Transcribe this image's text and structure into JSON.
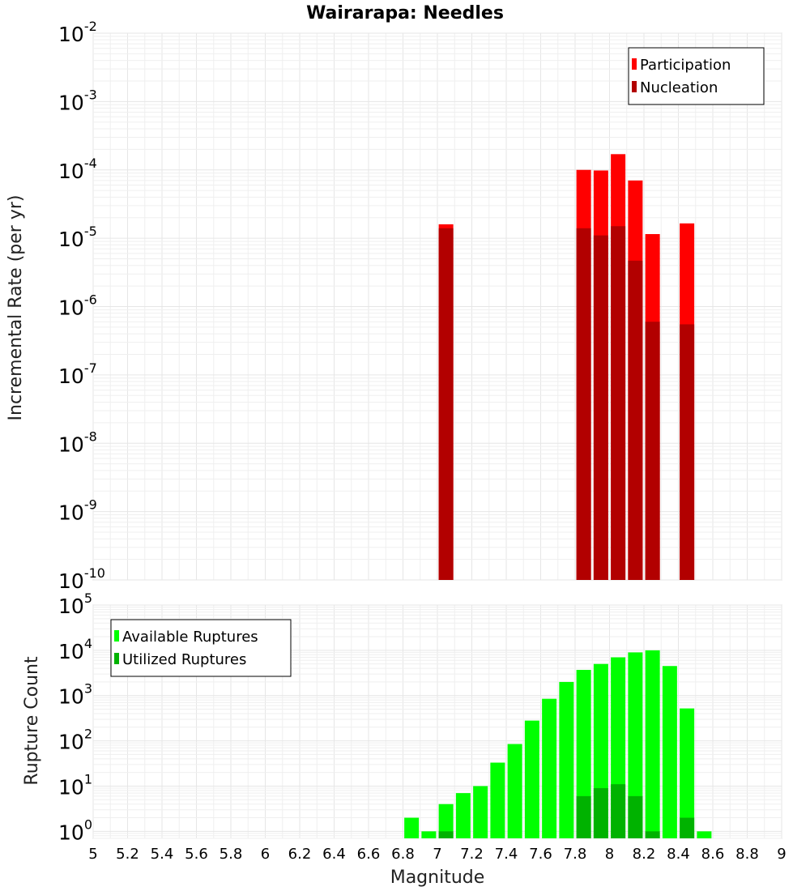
{
  "title": "Wairarapa: Needles",
  "colors": {
    "participation": "#ff0000",
    "nucleation": "#b20000",
    "available": "#00ff00",
    "utilized": "#00b200"
  },
  "chart_data": [
    {
      "type": "bar",
      "panel": "top",
      "yscale": "log",
      "xlabel": "Magnitude",
      "ylabel": "Incremental Rate (per yr)",
      "xlim": [
        5,
        9
      ],
      "ylim": [
        1e-10,
        0.01
      ],
      "y_tick_exponents": [
        -10,
        -9,
        -8,
        -7,
        -6,
        -5,
        -4,
        -3,
        -2
      ],
      "legend": {
        "position": "top-right",
        "entries": [
          "Participation",
          "Nucleation"
        ]
      },
      "x": [
        7.05,
        7.85,
        7.95,
        8.05,
        8.15,
        8.25,
        8.45
      ],
      "series": [
        {
          "name": "Participation",
          "values": [
            1.6e-05,
            0.0001,
            9.8e-05,
            0.00017,
            7e-05,
            1.15e-05,
            1.65e-05
          ]
        },
        {
          "name": "Nucleation",
          "values": [
            1.4e-05,
            1.4e-05,
            1.1e-05,
            1.5e-05,
            4.7e-06,
            6e-07,
            5.5e-07
          ]
        }
      ]
    },
    {
      "type": "bar",
      "panel": "bottom",
      "yscale": "log",
      "xlabel": "Magnitude",
      "ylabel": "Rupture Count",
      "xlim": [
        5,
        9
      ],
      "ylim": [
        0.7,
        100000.0
      ],
      "y_tick_exponents": [
        0,
        1,
        2,
        3,
        4,
        5
      ],
      "legend": {
        "position": "top-left",
        "entries": [
          "Available Ruptures",
          "Utilized Ruptures"
        ]
      },
      "x": [
        6.85,
        6.95,
        7.05,
        7.15,
        7.25,
        7.35,
        7.45,
        7.55,
        7.65,
        7.75,
        7.85,
        7.95,
        8.05,
        8.15,
        8.25,
        8.35,
        8.45,
        8.55
      ],
      "series": [
        {
          "name": "Available Ruptures",
          "values": [
            2,
            1,
            4,
            7,
            10,
            33,
            85,
            280,
            850,
            2000,
            3700,
            5000,
            7000,
            9000,
            10000,
            4500,
            520,
            1
          ]
        },
        {
          "name": "Utilized Ruptures",
          "values": [
            null,
            null,
            1,
            null,
            null,
            null,
            null,
            null,
            null,
            null,
            6,
            9,
            11,
            6,
            1,
            null,
            2,
            null
          ]
        }
      ],
      "x_ticks": [
        "5",
        "5.2",
        "5.4",
        "5.6",
        "5.8",
        "6",
        "6.2",
        "6.4",
        "6.6",
        "6.8",
        "7",
        "7.2",
        "7.4",
        "7.6",
        "7.8",
        "8",
        "8.2",
        "8.4",
        "8.6",
        "8.8",
        "9"
      ]
    }
  ]
}
